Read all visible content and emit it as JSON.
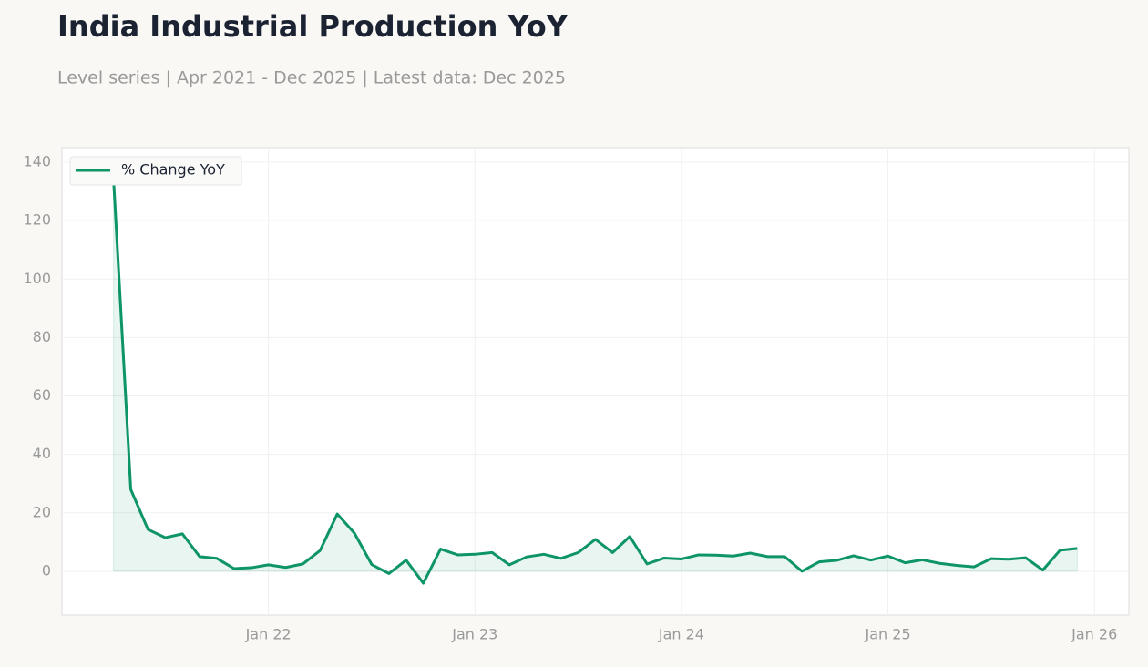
{
  "chart_data": {
    "type": "line",
    "title": "India Industrial Production YoY",
    "subtitle": "Level series | Apr 2021 - Dec 2025 | Latest data: Dec 2025",
    "x": [
      "2021-04",
      "2021-05",
      "2021-06",
      "2021-07",
      "2021-08",
      "2021-09",
      "2021-10",
      "2021-11",
      "2021-12",
      "2022-01",
      "2022-02",
      "2022-03",
      "2022-04",
      "2022-05",
      "2022-06",
      "2022-07",
      "2022-08",
      "2022-09",
      "2022-10",
      "2022-11",
      "2022-12",
      "2023-01",
      "2023-02",
      "2023-03",
      "2023-04",
      "2023-05",
      "2023-06",
      "2023-07",
      "2023-08",
      "2023-09",
      "2023-10",
      "2023-11",
      "2023-12",
      "2024-01",
      "2024-02",
      "2024-03",
      "2024-04",
      "2024-05",
      "2024-06",
      "2024-07",
      "2024-08",
      "2024-09",
      "2024-10",
      "2024-11",
      "2024-12",
      "2025-01",
      "2025-02",
      "2025-03",
      "2025-04",
      "2025-05",
      "2025-06",
      "2025-07",
      "2025-08",
      "2025-09",
      "2025-10",
      "2025-11",
      "2025-12"
    ],
    "series": [
      {
        "name": "% Change YoY",
        "color": "#0d9467",
        "values": [
          134,
          28,
          14.3,
          11.5,
          12.8,
          5,
          4.4,
          0.9,
          1.2,
          2.2,
          1.3,
          2.5,
          7.1,
          19.6,
          13,
          2.3,
          -0.8,
          3.8,
          -4.1,
          7.6,
          5.6,
          5.8,
          6.4,
          2.2,
          4.9,
          5.8,
          4.4,
          6.4,
          10.9,
          6.4,
          11.9,
          2.5,
          4.5,
          4.2,
          5.6,
          5.5,
          5.2,
          6.2,
          5,
          5,
          0,
          3.2,
          3.7,
          5.3,
          3.8,
          5.2,
          2.9,
          3.9,
          2.7,
          2,
          1.5,
          4.3,
          4.1,
          4.6,
          0.4,
          7.2,
          7.8
        ]
      }
    ],
    "xlim": [
      "2021-01",
      "2026-03"
    ],
    "xticks": [
      {
        "value": "2022-01",
        "label": "Jan 22"
      },
      {
        "value": "2023-01",
        "label": "Jan 23"
      },
      {
        "value": "2024-01",
        "label": "Jan 24"
      },
      {
        "value": "2025-01",
        "label": "Jan 25"
      },
      {
        "value": "2026-01",
        "label": "Jan 26"
      }
    ],
    "ylim": [
      -15,
      145
    ],
    "yticks": [
      0,
      20,
      40,
      60,
      80,
      100,
      120,
      140
    ],
    "grid": true,
    "area": true,
    "legend": "upper-left"
  }
}
